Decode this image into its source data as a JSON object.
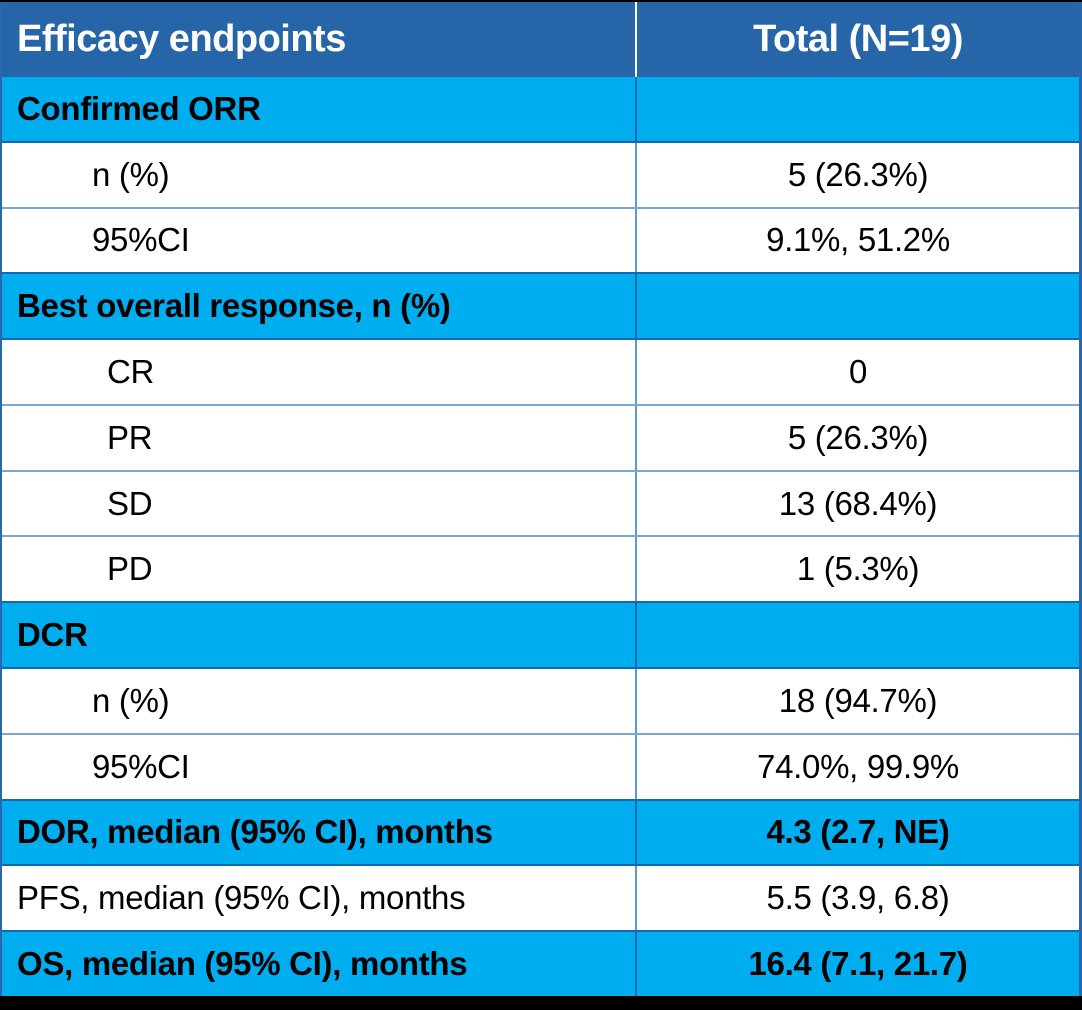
{
  "table": {
    "header": {
      "col1": "Efficacy endpoints",
      "col2": "Total (N=19)"
    },
    "rows": [
      {
        "label": "Confirmed ORR",
        "value": "",
        "type": "section"
      },
      {
        "label": "n (%)",
        "value": "5 (26.3%)",
        "type": "sub1"
      },
      {
        "label": "95%CI",
        "value": "9.1%, 51.2%",
        "type": "sub1"
      },
      {
        "label": "Best overall response, n (%)",
        "value": "",
        "type": "section"
      },
      {
        "label": "CR",
        "value": "0",
        "type": "sub2"
      },
      {
        "label": "PR",
        "value": "5 (26.3%)",
        "type": "sub2"
      },
      {
        "label": "SD",
        "value": "13 (68.4%)",
        "type": "sub2"
      },
      {
        "label": "PD",
        "value": "1 (5.3%)",
        "type": "sub2"
      },
      {
        "label": "DCR",
        "value": "",
        "type": "section"
      },
      {
        "label": "n (%)",
        "value": "18 (94.7%)",
        "type": "sub1"
      },
      {
        "label": "95%CI",
        "value": "74.0%, 99.9%",
        "type": "sub1"
      },
      {
        "label": "DOR, median (95% CI), months",
        "value": "4.3 (2.7, NE)",
        "type": "section"
      },
      {
        "label": "PFS, median (95% CI), months",
        "value": "5.5 (3.9, 6.8)",
        "type": "plain"
      },
      {
        "label": "OS, median (95% CI), months",
        "value": "16.4 (7.1, 21.7)",
        "type": "section"
      }
    ]
  },
  "colors": {
    "header_bg": "#2565A8",
    "section_bg": "#00AEEF",
    "side_border": "#2868AC",
    "frame_border": "#000000"
  },
  "chart_data": {
    "type": "table",
    "title": "Efficacy endpoints",
    "columns": [
      "Efficacy endpoints",
      "Total (N=19)"
    ],
    "n_total": 19,
    "rows": [
      [
        "Confirmed ORR",
        ""
      ],
      [
        "n (%)",
        "5 (26.3%)"
      ],
      [
        "95%CI",
        "9.1%, 51.2%"
      ],
      [
        "Best overall response, n (%)",
        ""
      ],
      [
        "CR",
        "0"
      ],
      [
        "PR",
        "5 (26.3%)"
      ],
      [
        "SD",
        "13 (68.4%)"
      ],
      [
        "PD",
        "1 (5.3%)"
      ],
      [
        "DCR",
        ""
      ],
      [
        "n (%)",
        "18 (94.7%)"
      ],
      [
        "95%CI",
        "74.0%, 99.9%"
      ],
      [
        "DOR, median (95% CI), months",
        "4.3 (2.7, NE)"
      ],
      [
        "PFS, median (95% CI), months",
        "5.5 (3.9, 6.8)"
      ],
      [
        "OS, median (95% CI), months",
        "16.4 (7.1, 21.7)"
      ]
    ]
  }
}
